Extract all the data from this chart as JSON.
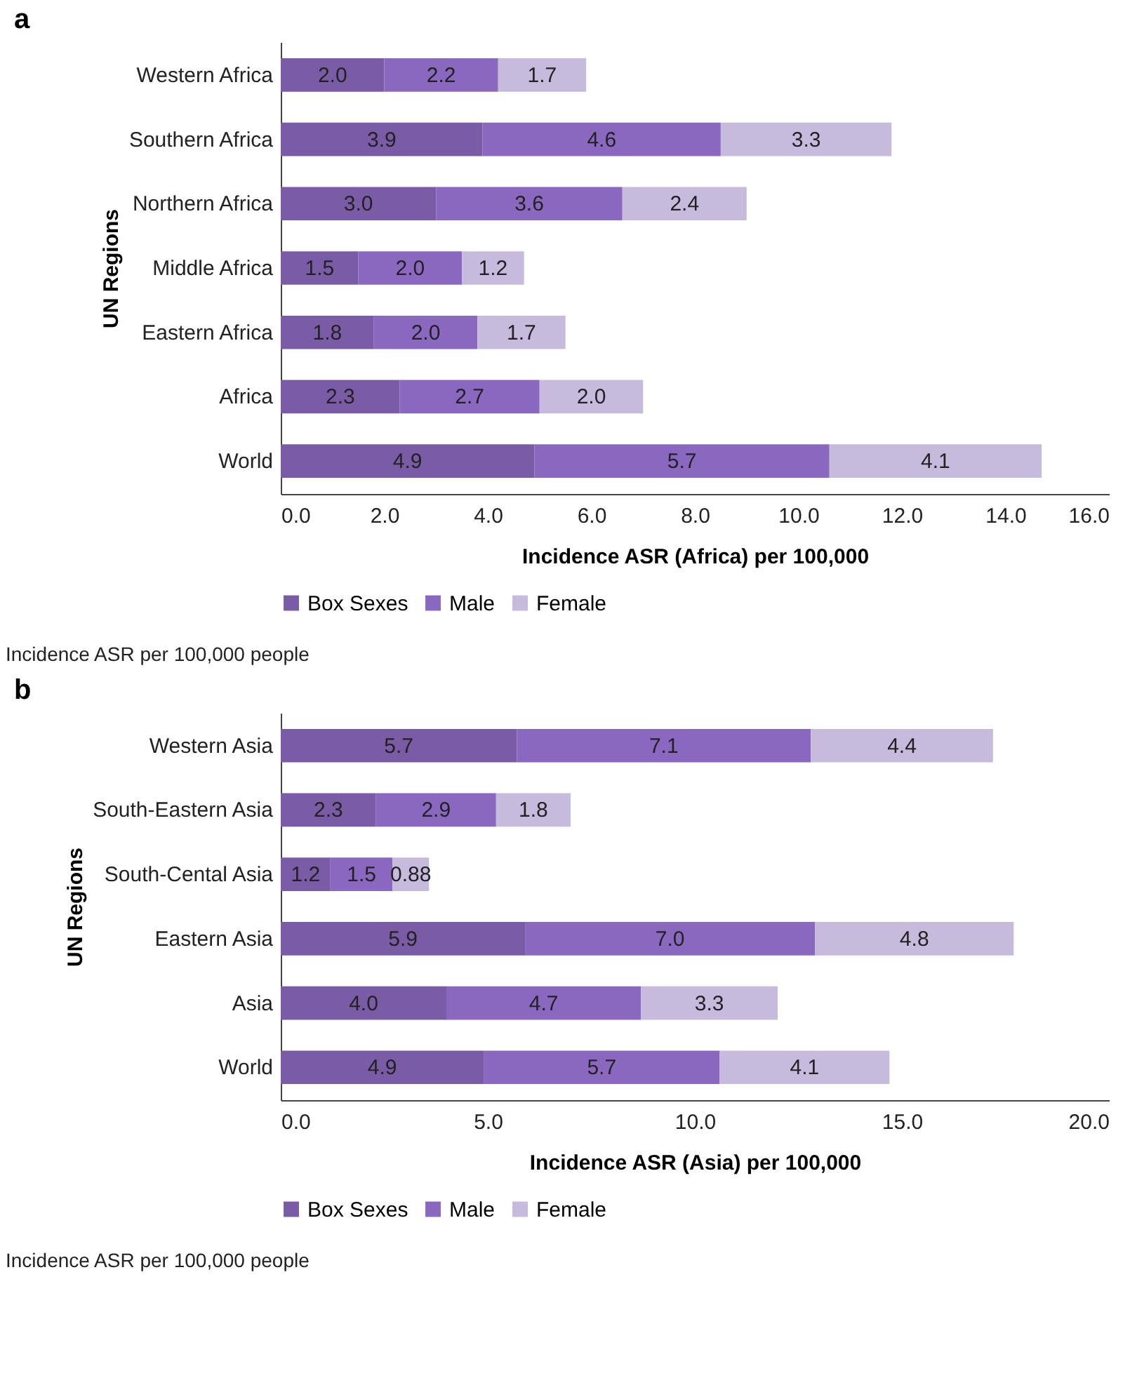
{
  "chart_data": [
    {
      "type": "bar",
      "title": "a",
      "orientation": "horizontal",
      "stacked": true,
      "xlabel": "Incidence ASR (Africa) per 100,000",
      "ylabel": "UN Regions",
      "categories": [
        "Western Africa",
        "Southern Africa",
        "Northern Africa",
        "Middle Africa",
        "Eastern Africa",
        "Africa",
        "World"
      ],
      "series": [
        {
          "name": "Box Sexes",
          "color": "#7a5ba6",
          "values": [
            2.0,
            3.9,
            3.0,
            1.5,
            1.8,
            2.3,
            4.9
          ],
          "value_labels": [
            "2.0",
            "3.9",
            "3.0",
            "1.5",
            "1.8",
            "2.3",
            "4.9"
          ]
        },
        {
          "name": "Male",
          "color": "#8a68bf",
          "values": [
            2.2,
            4.6,
            3.6,
            2.0,
            2.0,
            2.7,
            5.7
          ],
          "value_labels": [
            "2.2",
            "4.6",
            "3.6",
            "2.0",
            "2.0",
            "2.7",
            "5.7"
          ]
        },
        {
          "name": "Female",
          "color": "#c6badd",
          "values": [
            1.7,
            3.3,
            2.4,
            1.2,
            1.7,
            2.0,
            4.1
          ],
          "value_labels": [
            "1.7",
            "3.3",
            "2.4",
            "1.2",
            "1.7",
            "2.0",
            "4.1"
          ]
        }
      ],
      "xlim": [
        0,
        16
      ],
      "xticks": [
        {
          "value": 0,
          "label": "0.0"
        },
        {
          "value": 2,
          "label": "2.0"
        },
        {
          "value": 4,
          "label": "4.0"
        },
        {
          "value": 6,
          "label": "6.0"
        },
        {
          "value": 8,
          "label": "8.0"
        },
        {
          "value": 10,
          "label": "10.0"
        },
        {
          "value": 12,
          "label": "12.0"
        },
        {
          "value": 14,
          "label": "14.0"
        },
        {
          "value": 16,
          "label": "16.0"
        }
      ],
      "grid": false,
      "legend": "bottom",
      "annotations": [
        "Incidence ASR per 100,000 people"
      ]
    },
    {
      "type": "bar",
      "title": "b",
      "orientation": "horizontal",
      "stacked": true,
      "xlabel": "Incidence ASR (Asia) per 100,000",
      "ylabel": "UN Regions",
      "categories": [
        "Western Asia",
        "South-Eastern Asia",
        "South-Cental Asia",
        "Eastern Asia",
        "Asia",
        "World"
      ],
      "series": [
        {
          "name": "Box Sexes",
          "color": "#7a5ba6",
          "values": [
            5.7,
            2.3,
            1.2,
            5.9,
            4.0,
            4.9
          ],
          "value_labels": [
            "5.7",
            "2.3",
            "1.2",
            "5.9",
            "4.0",
            "4.9"
          ]
        },
        {
          "name": "Male",
          "color": "#8a68bf",
          "values": [
            7.1,
            2.9,
            1.5,
            7.0,
            4.7,
            5.7
          ],
          "value_labels": [
            "7.1",
            "2.9",
            "1.5",
            "7.0",
            "4.7",
            "5.7"
          ]
        },
        {
          "name": "Female",
          "color": "#c6badd",
          "values": [
            4.4,
            1.8,
            0.88,
            4.8,
            3.3,
            4.1
          ],
          "value_labels": [
            "4.4",
            "1.8",
            "0.88",
            "4.8",
            "3.3",
            "4.1"
          ]
        }
      ],
      "xlim": [
        0,
        20
      ],
      "xticks": [
        {
          "value": 0,
          "label": "0.0"
        },
        {
          "value": 5,
          "label": "5.0"
        },
        {
          "value": 10,
          "label": "10.0"
        },
        {
          "value": 15,
          "label": "15.0"
        },
        {
          "value": 20,
          "label": "20.0"
        }
      ],
      "grid": false,
      "legend": "bottom",
      "annotations": [
        "Incidence ASR per 100,000 people"
      ]
    }
  ]
}
